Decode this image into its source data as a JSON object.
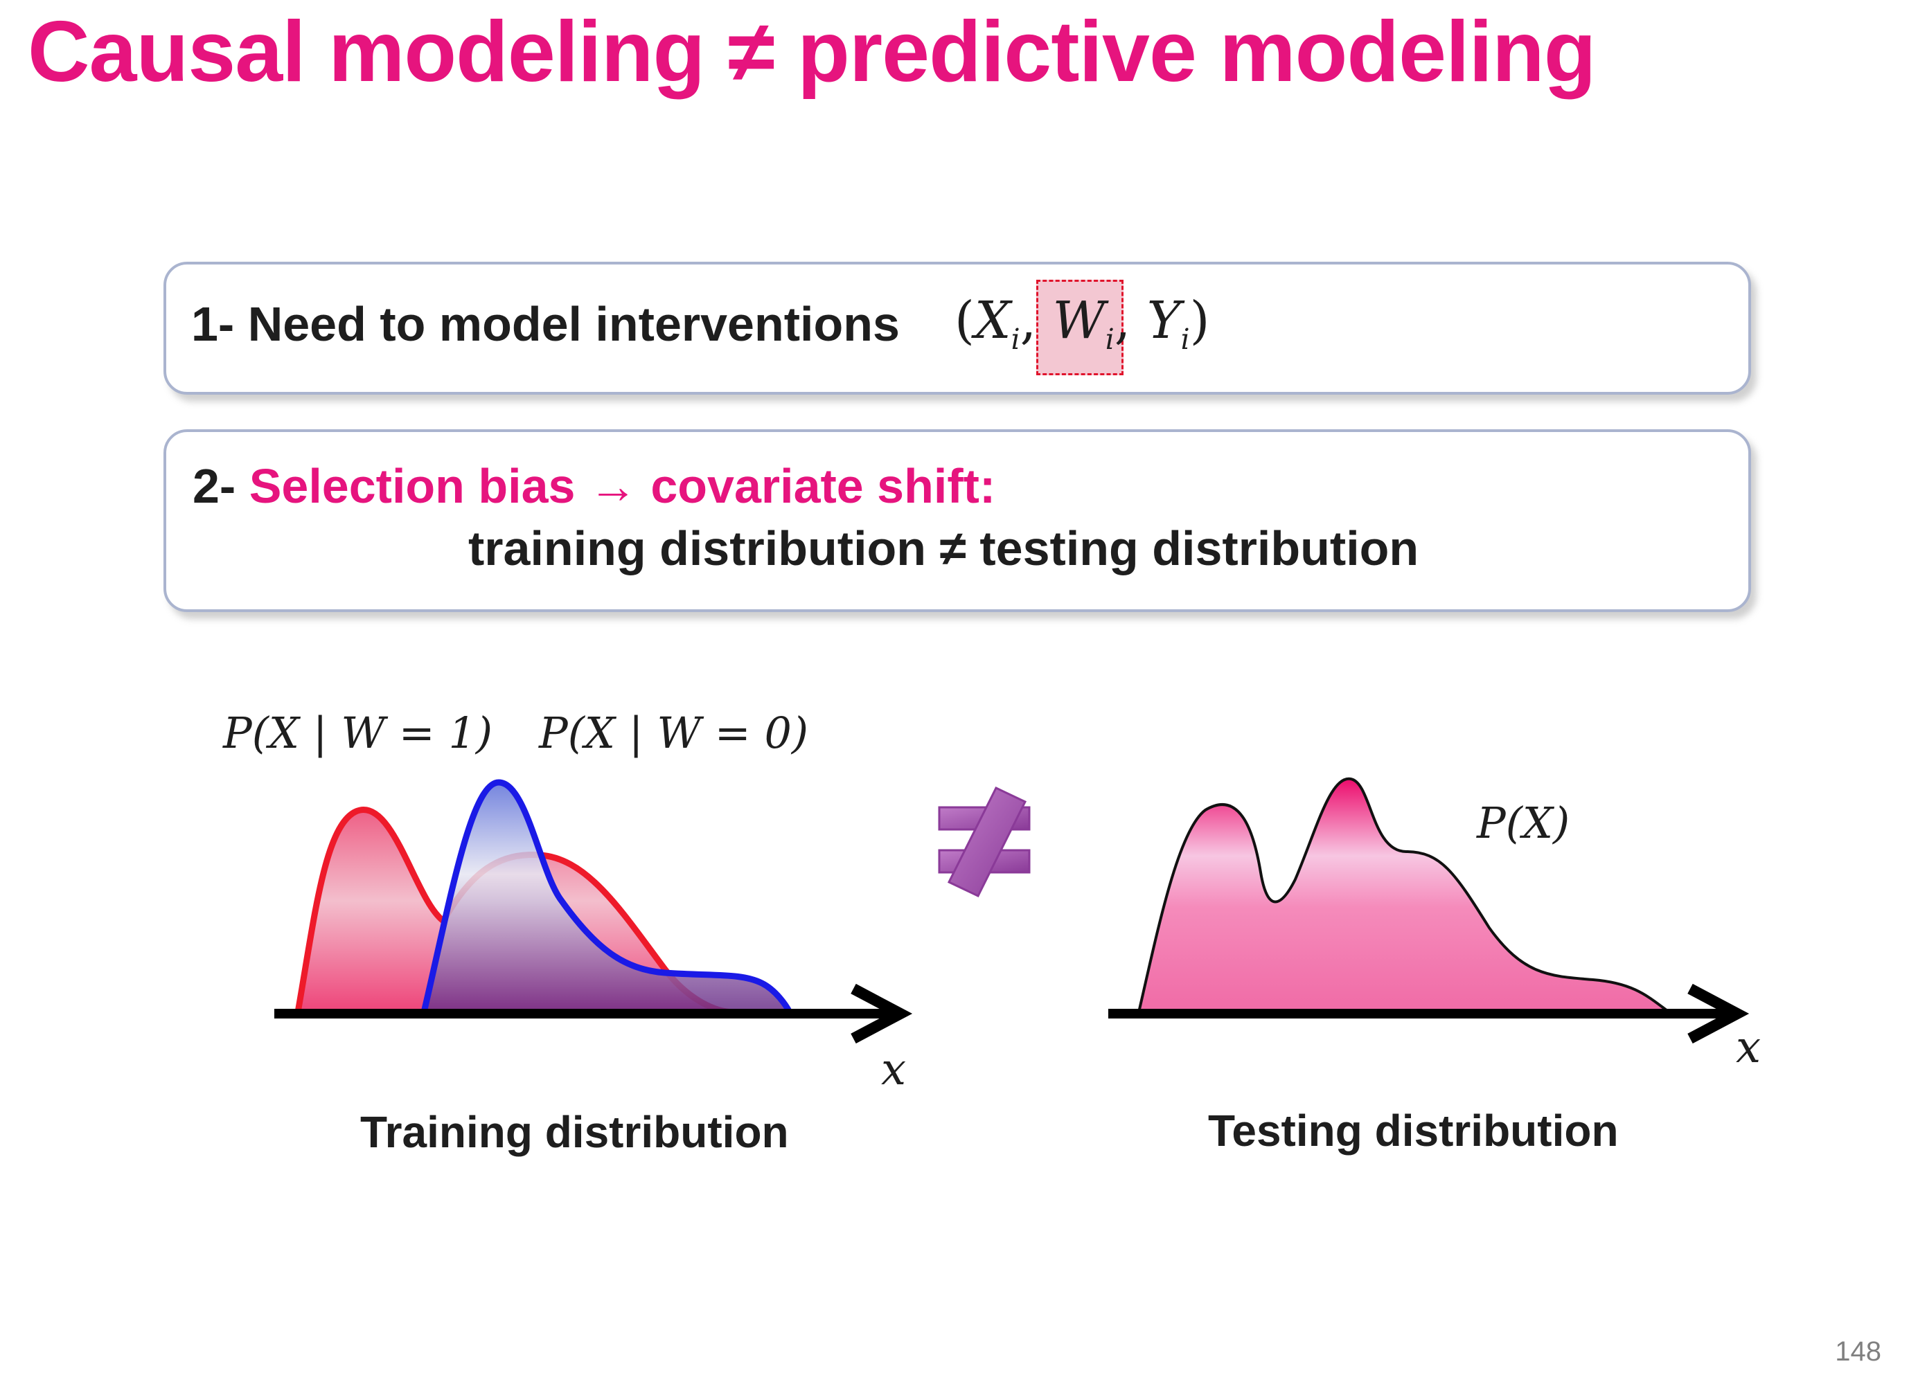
{
  "title": "Causal modeling ≠ predictive modeling",
  "box1": {
    "number": "1-",
    "text": "Need to model interventions",
    "tuple": {
      "open": "(",
      "x": "X",
      "w": "W",
      "y": "Y",
      "sub": "i",
      "sep": ",",
      "close": ")"
    }
  },
  "box2": {
    "number": "2-",
    "highlight": "Selection bias → covariate shift:",
    "line2": "training distribution ≠ testing distribution"
  },
  "diagram": {
    "label_w1": "P(X | W = 1)",
    "label_w0": "P(X | W = 0)",
    "label_px": "P(X)",
    "axis_label_left": "x",
    "axis_label_right": "x",
    "neq_symbol": "≠",
    "caption_left": "Training distribution",
    "caption_right": "Testing distribution",
    "colors": {
      "treated": "#ee1a2a",
      "control": "#1a1ae6",
      "testing": "#f276ad",
      "neq": "#a04aa8"
    }
  },
  "page_number": "148"
}
